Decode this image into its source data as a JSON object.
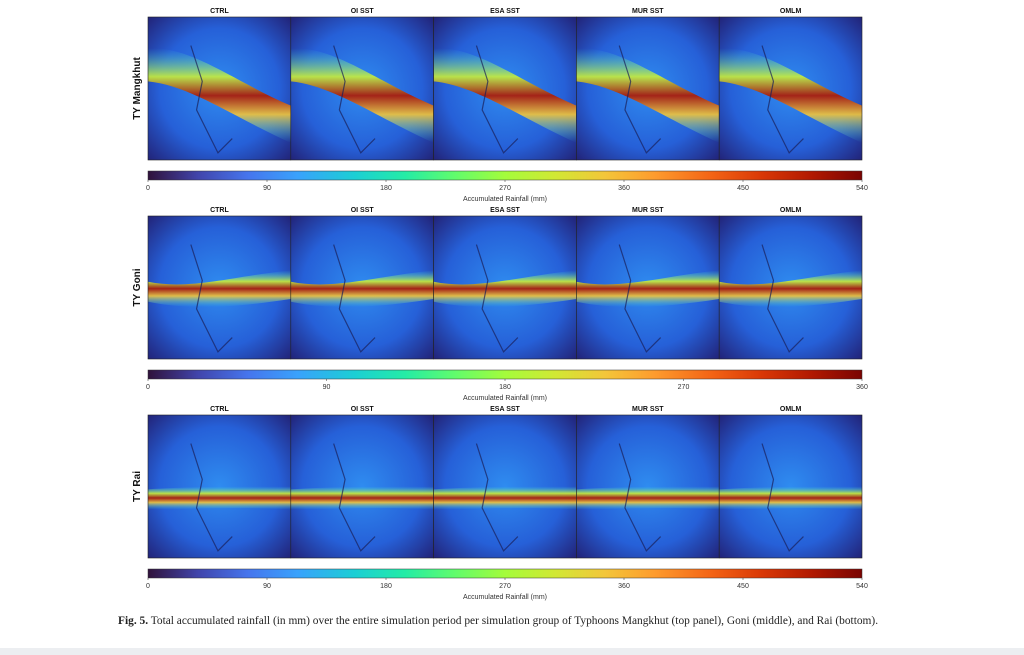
{
  "panels": [
    {
      "row_label": "TY Mangkhut",
      "columns": [
        "CTRL",
        "OI SST",
        "ESA SST",
        "MUR SST",
        "OMLM"
      ],
      "colorbar": {
        "label": "Accumulated Rainfall (mm)",
        "ticks": [
          0,
          90,
          180,
          270,
          360,
          450,
          540
        ]
      }
    },
    {
      "row_label": "TY Goni",
      "columns": [
        "CTRL",
        "OI SST",
        "ESA SST",
        "MUR SST",
        "OMLM"
      ],
      "colorbar": {
        "label": "Accumulated Rainfall (mm)",
        "ticks": [
          0,
          90,
          180,
          270,
          360
        ]
      }
    },
    {
      "row_label": "TY Rai",
      "columns": [
        "CTRL",
        "OI SST",
        "ESA SST",
        "MUR SST",
        "OMLM"
      ],
      "colorbar": {
        "label": "Accumulated Rainfall (mm)",
        "ticks": [
          0,
          90,
          180,
          270,
          360,
          450,
          540
        ]
      }
    }
  ],
  "caption": {
    "label": "Fig. 5.",
    "text": "Total accumulated rainfall (in mm) over the entire simulation period per simulation group of Typhoons Mangkhut (top panel), Goni (middle), and Rai (bottom)."
  }
}
